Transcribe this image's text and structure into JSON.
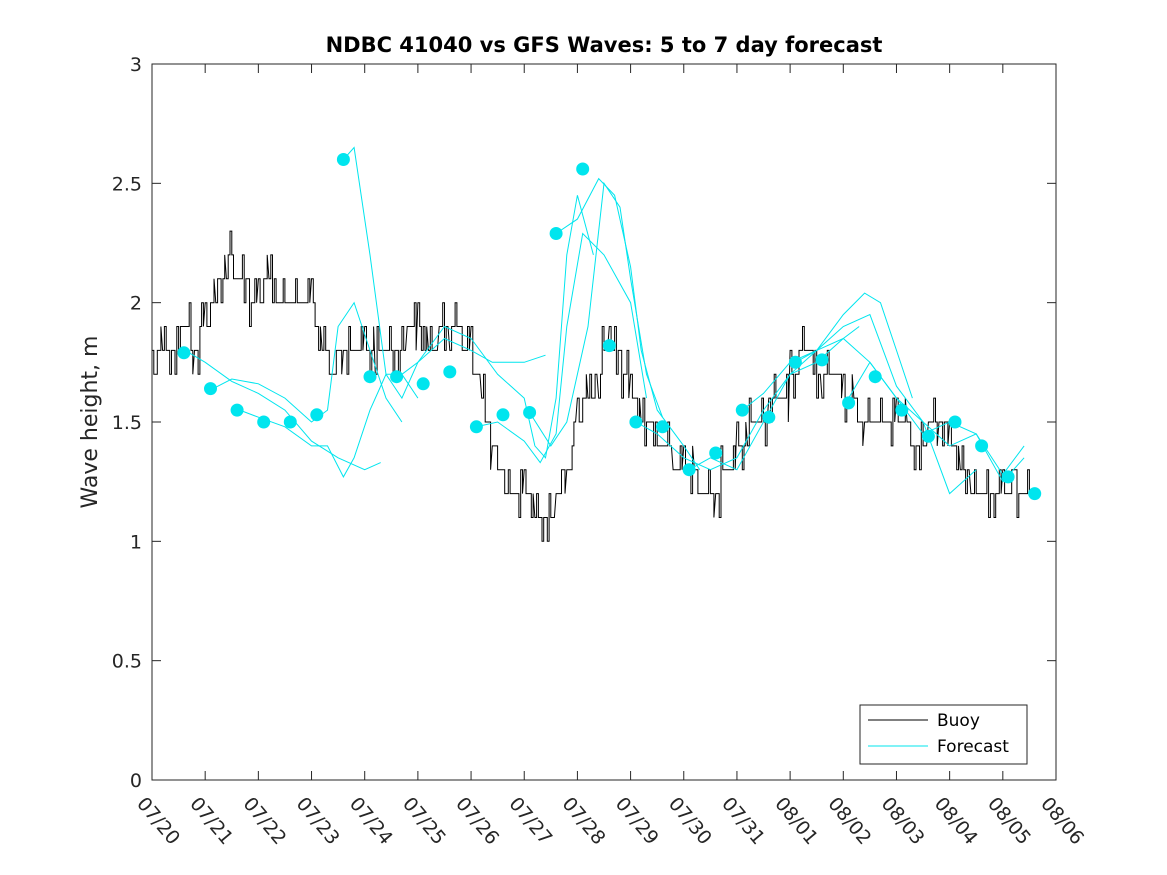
{
  "chart_data": {
    "type": "line",
    "title": "NDBC 41040 vs GFS Waves: 5 to 7 day forecast",
    "xlabel": "",
    "ylabel": "Wave height, m",
    "xlim": [
      "07/20",
      "08/06"
    ],
    "ylim": [
      0,
      3
    ],
    "x_ticks": [
      "07/20",
      "07/21",
      "07/22",
      "07/23",
      "07/24",
      "07/25",
      "07/26",
      "07/27",
      "07/28",
      "07/29",
      "07/30",
      "07/31",
      "08/01",
      "08/02",
      "08/03",
      "08/04",
      "08/05",
      "08/06"
    ],
    "y_ticks": [
      "0",
      "0.5",
      "1",
      "1.5",
      "2",
      "2.5",
      "3"
    ],
    "grid": false,
    "legend_position": "bottom-right",
    "colors": {
      "buoy": "#000000",
      "forecast": "#00e5ee",
      "axes": "#262626"
    },
    "series": [
      {
        "name": "Buoy",
        "x_unit": "days since 07/20 00:00",
        "x": [
          0,
          0.2,
          0.4,
          0.6,
          0.8,
          1.0,
          1.2,
          1.4,
          1.6,
          1.8,
          2.0,
          2.2,
          2.4,
          2.6,
          2.8,
          3.0,
          3.2,
          3.4,
          3.6,
          3.8,
          4.0,
          4.2,
          4.4,
          4.6,
          4.8,
          5.0,
          5.2,
          5.4,
          5.6,
          5.8,
          6.0,
          6.2,
          6.4,
          6.6,
          6.8,
          7.0,
          7.2,
          7.4,
          7.6,
          7.8,
          8.0,
          8.2,
          8.4,
          8.6,
          8.8,
          9.0,
          9.2,
          9.4,
          9.6,
          9.8,
          10.0,
          10.2,
          10.4,
          10.6,
          10.8,
          11.0,
          11.2,
          11.4,
          11.6,
          11.8,
          12.0,
          12.2,
          12.4,
          12.6,
          12.8,
          13.0,
          13.2,
          13.4,
          13.6,
          13.8,
          14.0,
          14.2,
          14.4,
          14.6,
          14.8,
          15.0,
          15.2,
          15.4,
          15.6,
          15.8,
          16.0,
          16.2,
          16.4
        ],
        "y": [
          1.7,
          1.8,
          1.75,
          1.9,
          1.8,
          1.9,
          2.0,
          2.2,
          2.1,
          2.05,
          2.0,
          2.1,
          2.0,
          1.95,
          2.05,
          2.0,
          1.8,
          1.7,
          1.8,
          1.75,
          1.8,
          1.8,
          1.75,
          1.8,
          1.85,
          1.9,
          1.8,
          1.85,
          1.9,
          1.85,
          1.8,
          1.6,
          1.4,
          1.25,
          1.2,
          1.2,
          1.1,
          1.05,
          1.15,
          1.3,
          1.5,
          1.6,
          1.7,
          1.85,
          1.75,
          1.6,
          1.5,
          1.45,
          1.4,
          1.35,
          1.3,
          1.25,
          1.2,
          1.2,
          1.3,
          1.35,
          1.45,
          1.5,
          1.55,
          1.6,
          1.65,
          1.75,
          1.75,
          1.7,
          1.7,
          1.6,
          1.55,
          1.5,
          1.45,
          1.5,
          1.5,
          1.45,
          1.4,
          1.45,
          1.5,
          1.4,
          1.3,
          1.25,
          1.2,
          1.15,
          1.2,
          1.25,
          1.2
        ]
      },
      {
        "name": "Forecast",
        "x_unit": "days since 07/20 00:00",
        "runs": [
          {
            "x": [
              0.7,
              1.0,
              1.5,
              2.0,
              2.5,
              3.0,
              3.5,
              4.0,
              4.3
            ],
            "y": [
              1.79,
              1.75,
              1.67,
              1.62,
              1.55,
              1.42,
              1.35,
              1.3,
              1.33
            ]
          },
          {
            "x": [
              1.15,
              1.5,
              2.0,
              2.5,
              3.0,
              3.3,
              3.5,
              3.8,
              4.1,
              4.4,
              4.7
            ],
            "y": [
              1.64,
              1.68,
              1.66,
              1.6,
              1.5,
              1.55,
              1.9,
              2.0,
              1.8,
              1.6,
              1.5
            ]
          },
          {
            "x": [
              1.65,
              2.0,
              2.5,
              3.0,
              3.3,
              3.6,
              3.8,
              4.1,
              4.4,
              4.7,
              5.0
            ],
            "y": [
              1.55,
              1.52,
              1.48,
              1.4,
              1.4,
              1.27,
              1.35,
              1.55,
              1.7,
              1.7,
              1.6
            ]
          },
          {
            "x": [
              3.6,
              3.8,
              4.1,
              4.4,
              4.7,
              5.0,
              5.5,
              6.0,
              6.4,
              7.0,
              7.4
            ],
            "y": [
              2.6,
              2.65,
              2.2,
              1.7,
              1.6,
              1.75,
              1.85,
              1.8,
              1.75,
              1.75,
              1.78
            ]
          },
          {
            "x": [
              4.7,
              5.0,
              5.5,
              6.0,
              6.5,
              7.0,
              7.2,
              7.4,
              7.6,
              7.8,
              8.0,
              8.3
            ],
            "y": [
              1.7,
              1.75,
              1.9,
              1.85,
              1.7,
              1.6,
              1.4,
              1.35,
              1.6,
              2.2,
              2.45,
              2.2
            ]
          },
          {
            "x": [
              6.1,
              6.5,
              7.0,
              7.3,
              7.6,
              7.8,
              8.1,
              8.5,
              9.0,
              9.3
            ],
            "y": [
              1.48,
              1.5,
              1.42,
              1.33,
              1.45,
              1.9,
              2.29,
              2.2,
              2.0,
              1.6
            ]
          },
          {
            "x": [
              7.1,
              7.5,
              7.8,
              8.2,
              8.5,
              8.8,
              9.0,
              9.3,
              9.6
            ],
            "y": [
              1.54,
              1.4,
              1.5,
              1.9,
              2.5,
              2.4,
              2.1,
              1.7,
              1.52
            ]
          },
          {
            "x": [
              7.6,
              8.0,
              8.4,
              8.7,
              9.0,
              9.2,
              9.5,
              10.0,
              10.3
            ],
            "y": [
              2.29,
              2.35,
              2.52,
              2.45,
              2.15,
              1.8,
              1.55,
              1.4,
              1.3
            ]
          },
          {
            "x": [
              9.1,
              9.5,
              10.0,
              10.5,
              11.0,
              11.5,
              12.0,
              12.5,
              13.0,
              13.3
            ],
            "y": [
              1.5,
              1.45,
              1.35,
              1.3,
              1.35,
              1.55,
              1.7,
              1.75,
              1.85,
              1.9
            ]
          },
          {
            "x": [
              10.1,
              10.5,
              11.0,
              11.5,
              12.0,
              12.5,
              13.0,
              13.4,
              13.7,
              14.0,
              14.3
            ],
            "y": [
              1.3,
              1.35,
              1.3,
              1.5,
              1.7,
              1.8,
              1.95,
              2.04,
              2.0,
              1.8,
              1.6
            ]
          },
          {
            "x": [
              11.1,
              11.5,
              12.0,
              12.5,
              13.0,
              13.5,
              14.0,
              14.5,
              15.0,
              15.5
            ],
            "y": [
              1.55,
              1.62,
              1.75,
              1.8,
              1.9,
              1.95,
              1.65,
              1.5,
              1.2,
              1.3
            ]
          },
          {
            "x": [
              12.1,
              12.5,
              13.0,
              13.5,
              14.0,
              14.5,
              15.0,
              15.5,
              16.0,
              16.4
            ],
            "y": [
              1.75,
              1.8,
              1.85,
              1.75,
              1.6,
              1.45,
              1.5,
              1.45,
              1.28,
              1.4
            ]
          },
          {
            "x": [
              13.1,
              13.5,
              14.0,
              14.5,
              15.0,
              15.5,
              16.0,
              16.4
            ],
            "y": [
              1.6,
              1.75,
              1.6,
              1.5,
              1.4,
              1.45,
              1.25,
              1.35
            ]
          }
        ],
        "markers": {
          "x": [
            0.6,
            1.1,
            1.6,
            2.1,
            2.6,
            3.1,
            3.6,
            4.1,
            4.6,
            5.1,
            5.6,
            6.1,
            6.6,
            7.1,
            7.6,
            8.1,
            8.6,
            9.1,
            9.6,
            10.1,
            10.6,
            11.1,
            11.6,
            12.1,
            12.6,
            13.1,
            13.6,
            14.1,
            14.6,
            15.1,
            15.6,
            16.1,
            16.6
          ],
          "y": [
            1.79,
            1.64,
            1.55,
            1.5,
            1.5,
            1.53,
            2.6,
            1.69,
            1.69,
            1.66,
            1.71,
            1.48,
            1.53,
            1.54,
            2.29,
            2.56,
            1.82,
            1.5,
            1.48,
            1.3,
            1.37,
            1.55,
            1.52,
            1.75,
            1.76,
            1.58,
            1.69,
            1.55,
            1.44,
            1.5,
            1.4,
            1.27,
            1.2
          ]
        }
      }
    ]
  }
}
